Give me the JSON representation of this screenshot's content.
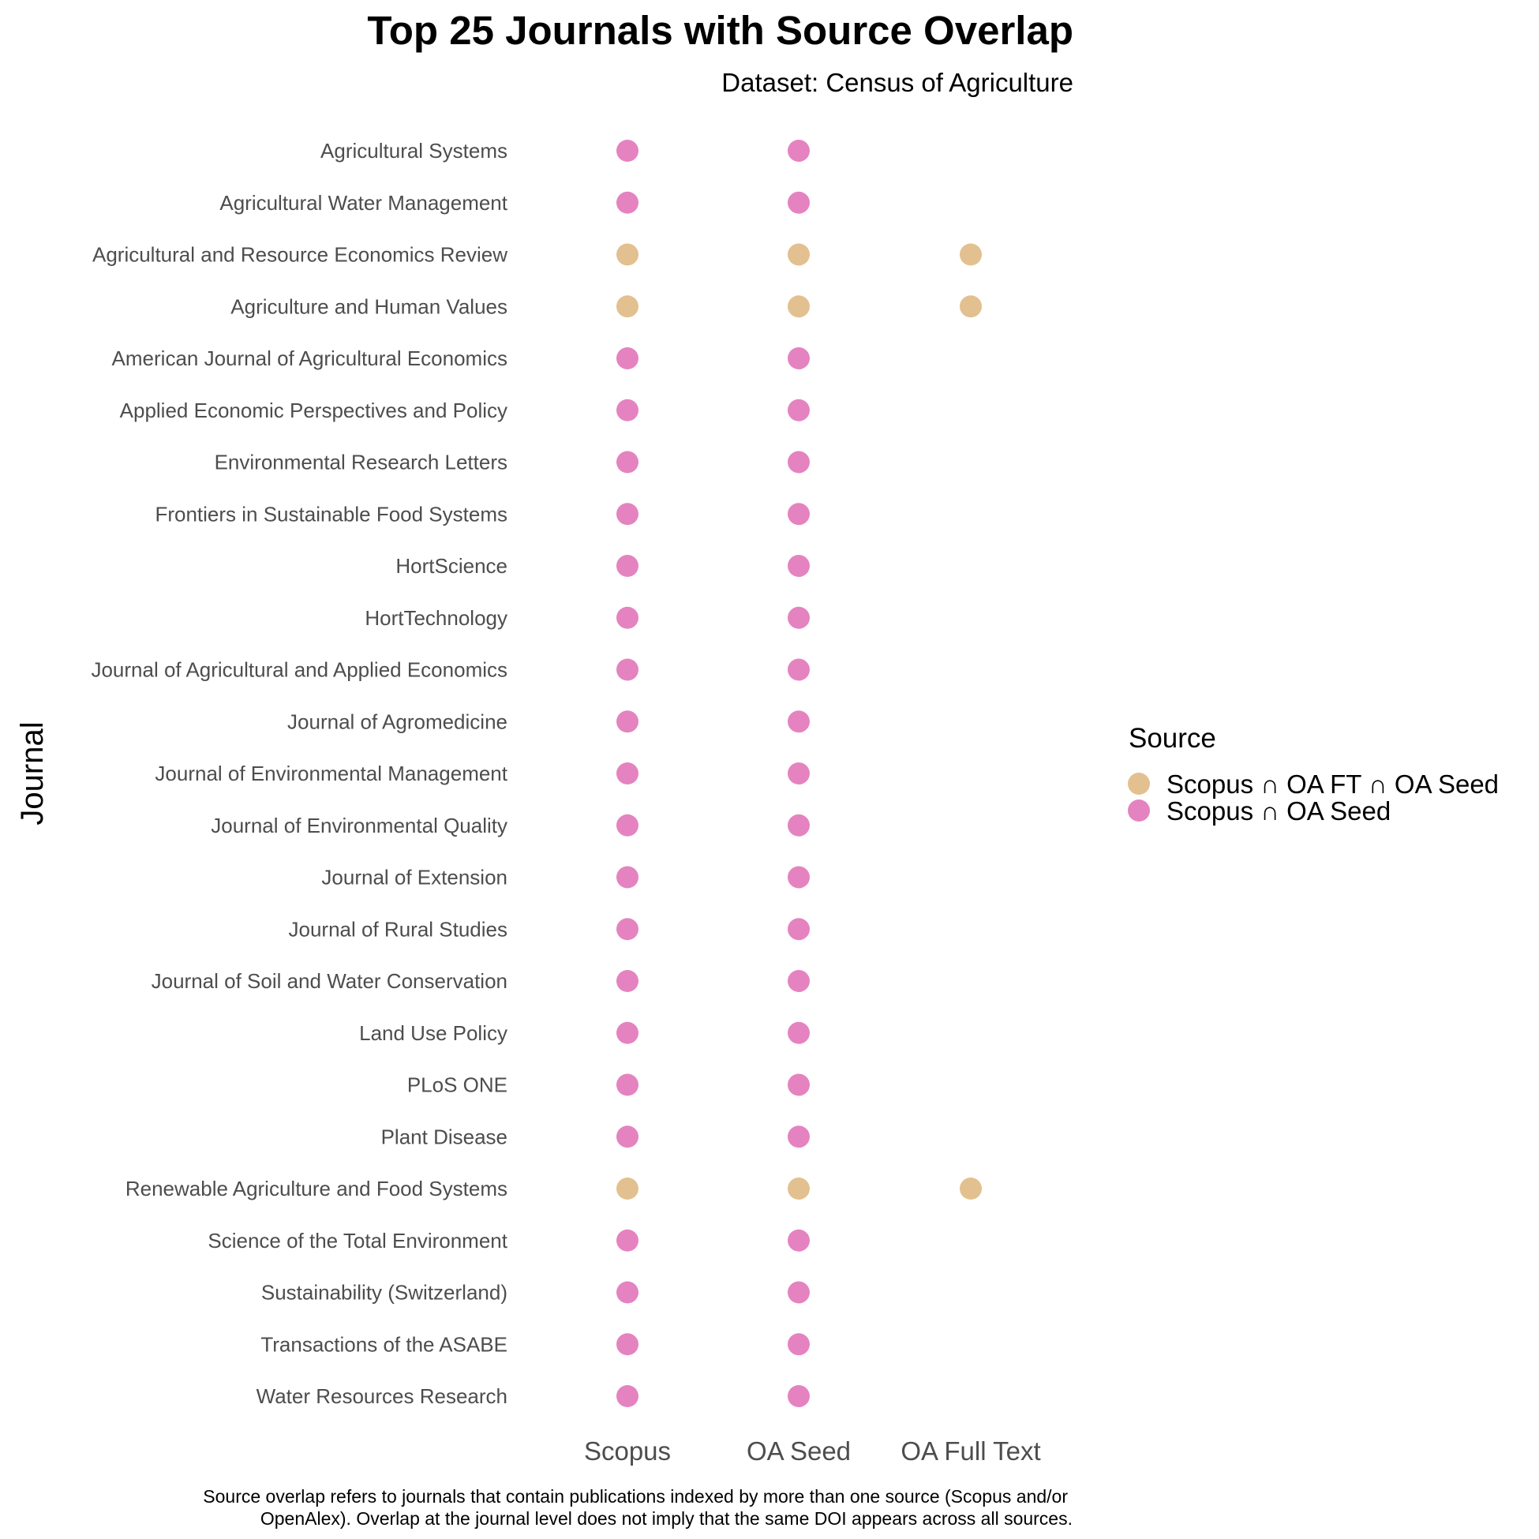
{
  "chart_data": {
    "type": "scatter",
    "title": "Top 25 Journals with Source Overlap",
    "subtitle": "Dataset: Census of Agriculture",
    "ylabel": "Journal",
    "xlabel": "",
    "x_categories": [
      "Scopus",
      "OA Seed",
      "OA Full Text"
    ],
    "y_categories": [
      "Agricultural Systems",
      "Agricultural Water Management",
      "Agricultural and Resource Economics Review",
      "Agriculture and Human Values",
      "American Journal of Agricultural Economics",
      "Applied Economic Perspectives and Policy",
      "Environmental Research Letters",
      "Frontiers in Sustainable Food Systems",
      "HortScience",
      "HortTechnology",
      "Journal of Agricultural and Applied Economics",
      "Journal of Agromedicine",
      "Journal of Environmental Management",
      "Journal of Environmental Quality",
      "Journal of Extension",
      "Journal of Rural Studies",
      "Journal of Soil and Water Conservation",
      "Land Use Policy",
      "PLoS ONE",
      "Plant Disease",
      "Renewable Agriculture and Food Systems",
      "Science of the Total Environment",
      "Sustainability (Switzerland)",
      "Transactions of the ASABE",
      "Water Resources Research"
    ],
    "legend": {
      "title": "Source",
      "position": "right",
      "entries": [
        {
          "label": "Scopus ∩ OA FT ∩ OA Seed",
          "color": "#E3C08F"
        },
        {
          "label": "Scopus ∩ OA Seed",
          "color": "#E583C1"
        }
      ]
    },
    "points": [
      {
        "journal": "Agricultural Systems",
        "sources": [
          "Scopus",
          "OA Seed"
        ],
        "group": "Scopus ∩ OA Seed"
      },
      {
        "journal": "Agricultural Water Management",
        "sources": [
          "Scopus",
          "OA Seed"
        ],
        "group": "Scopus ∩ OA Seed"
      },
      {
        "journal": "Agricultural and Resource Economics Review",
        "sources": [
          "Scopus",
          "OA Seed",
          "OA Full Text"
        ],
        "group": "Scopus ∩ OA FT ∩ OA Seed"
      },
      {
        "journal": "Agriculture and Human Values",
        "sources": [
          "Scopus",
          "OA Seed",
          "OA Full Text"
        ],
        "group": "Scopus ∩ OA FT ∩ OA Seed"
      },
      {
        "journal": "American Journal of Agricultural Economics",
        "sources": [
          "Scopus",
          "OA Seed"
        ],
        "group": "Scopus ∩ OA Seed"
      },
      {
        "journal": "Applied Economic Perspectives and Policy",
        "sources": [
          "Scopus",
          "OA Seed"
        ],
        "group": "Scopus ∩ OA Seed"
      },
      {
        "journal": "Environmental Research Letters",
        "sources": [
          "Scopus",
          "OA Seed"
        ],
        "group": "Scopus ∩ OA Seed"
      },
      {
        "journal": "Frontiers in Sustainable Food Systems",
        "sources": [
          "Scopus",
          "OA Seed"
        ],
        "group": "Scopus ∩ OA Seed"
      },
      {
        "journal": "HortScience",
        "sources": [
          "Scopus",
          "OA Seed"
        ],
        "group": "Scopus ∩ OA Seed"
      },
      {
        "journal": "HortTechnology",
        "sources": [
          "Scopus",
          "OA Seed"
        ],
        "group": "Scopus ∩ OA Seed"
      },
      {
        "journal": "Journal of Agricultural and Applied Economics",
        "sources": [
          "Scopus",
          "OA Seed"
        ],
        "group": "Scopus ∩ OA Seed"
      },
      {
        "journal": "Journal of Agromedicine",
        "sources": [
          "Scopus",
          "OA Seed"
        ],
        "group": "Scopus ∩ OA Seed"
      },
      {
        "journal": "Journal of Environmental Management",
        "sources": [
          "Scopus",
          "OA Seed"
        ],
        "group": "Scopus ∩ OA Seed"
      },
      {
        "journal": "Journal of Environmental Quality",
        "sources": [
          "Scopus",
          "OA Seed"
        ],
        "group": "Scopus ∩ OA Seed"
      },
      {
        "journal": "Journal of Extension",
        "sources": [
          "Scopus",
          "OA Seed"
        ],
        "group": "Scopus ∩ OA Seed"
      },
      {
        "journal": "Journal of Rural Studies",
        "sources": [
          "Scopus",
          "OA Seed"
        ],
        "group": "Scopus ∩ OA Seed"
      },
      {
        "journal": "Journal of Soil and Water Conservation",
        "sources": [
          "Scopus",
          "OA Seed"
        ],
        "group": "Scopus ∩ OA Seed"
      },
      {
        "journal": "Land Use Policy",
        "sources": [
          "Scopus",
          "OA Seed"
        ],
        "group": "Scopus ∩ OA Seed"
      },
      {
        "journal": "PLoS ONE",
        "sources": [
          "Scopus",
          "OA Seed"
        ],
        "group": "Scopus ∩ OA Seed"
      },
      {
        "journal": "Plant Disease",
        "sources": [
          "Scopus",
          "OA Seed"
        ],
        "group": "Scopus ∩ OA Seed"
      },
      {
        "journal": "Renewable Agriculture and Food Systems",
        "sources": [
          "Scopus",
          "OA Seed",
          "OA Full Text"
        ],
        "group": "Scopus ∩ OA FT ∩ OA Seed"
      },
      {
        "journal": "Science of the Total Environment",
        "sources": [
          "Scopus",
          "OA Seed"
        ],
        "group": "Scopus ∩ OA Seed"
      },
      {
        "journal": "Sustainability (Switzerland)",
        "sources": [
          "Scopus",
          "OA Seed"
        ],
        "group": "Scopus ∩ OA Seed"
      },
      {
        "journal": "Transactions of the ASABE",
        "sources": [
          "Scopus",
          "OA Seed"
        ],
        "group": "Scopus ∩ OA Seed"
      },
      {
        "journal": "Water Resources Research",
        "sources": [
          "Scopus",
          "OA Seed"
        ],
        "group": "Scopus ∩ OA Seed"
      }
    ],
    "grid": false,
    "caption": [
      "Source overlap refers to journals that contain publications indexed by more than one source (Scopus and/or",
      "OpenAlex). Overlap at the journal level does not imply that the same DOI appears across all sources."
    ]
  }
}
